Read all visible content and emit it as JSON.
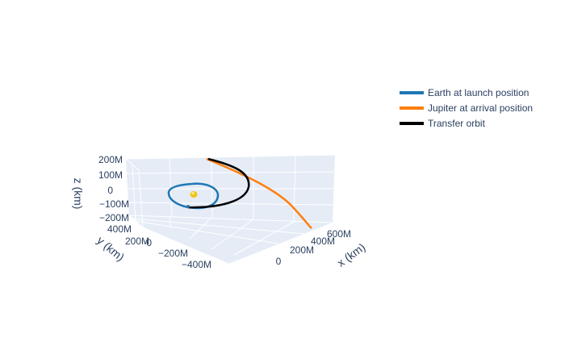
{
  "chart_data": {
    "type": "line3d",
    "title": "",
    "axes": {
      "x": {
        "label": "x (km)",
        "ticks": [
          "0",
          "200M",
          "400M",
          "600M"
        ]
      },
      "y": {
        "label": "y (km)",
        "ticks": [
          "−400M",
          "−200M",
          "0",
          "200M",
          "400M"
        ]
      },
      "z": {
        "label": "z (km)",
        "ticks": [
          "−200M",
          "−100M",
          "0",
          "100M",
          "200M"
        ]
      }
    },
    "legend_position": "top-right",
    "series": [
      {
        "name": "Earth at launch position",
        "color": "#1f77b4",
        "shape": "closed-orbit"
      },
      {
        "name": "Jupiter at arrival position",
        "color": "#ff7f0e",
        "shape": "arc"
      },
      {
        "name": "Transfer orbit",
        "color": "#000000",
        "shape": "transfer-arc"
      }
    ],
    "sun": {
      "color": "#f0c419"
    },
    "scene_background": "#e5ecf6",
    "grid_color": "#ffffff"
  }
}
